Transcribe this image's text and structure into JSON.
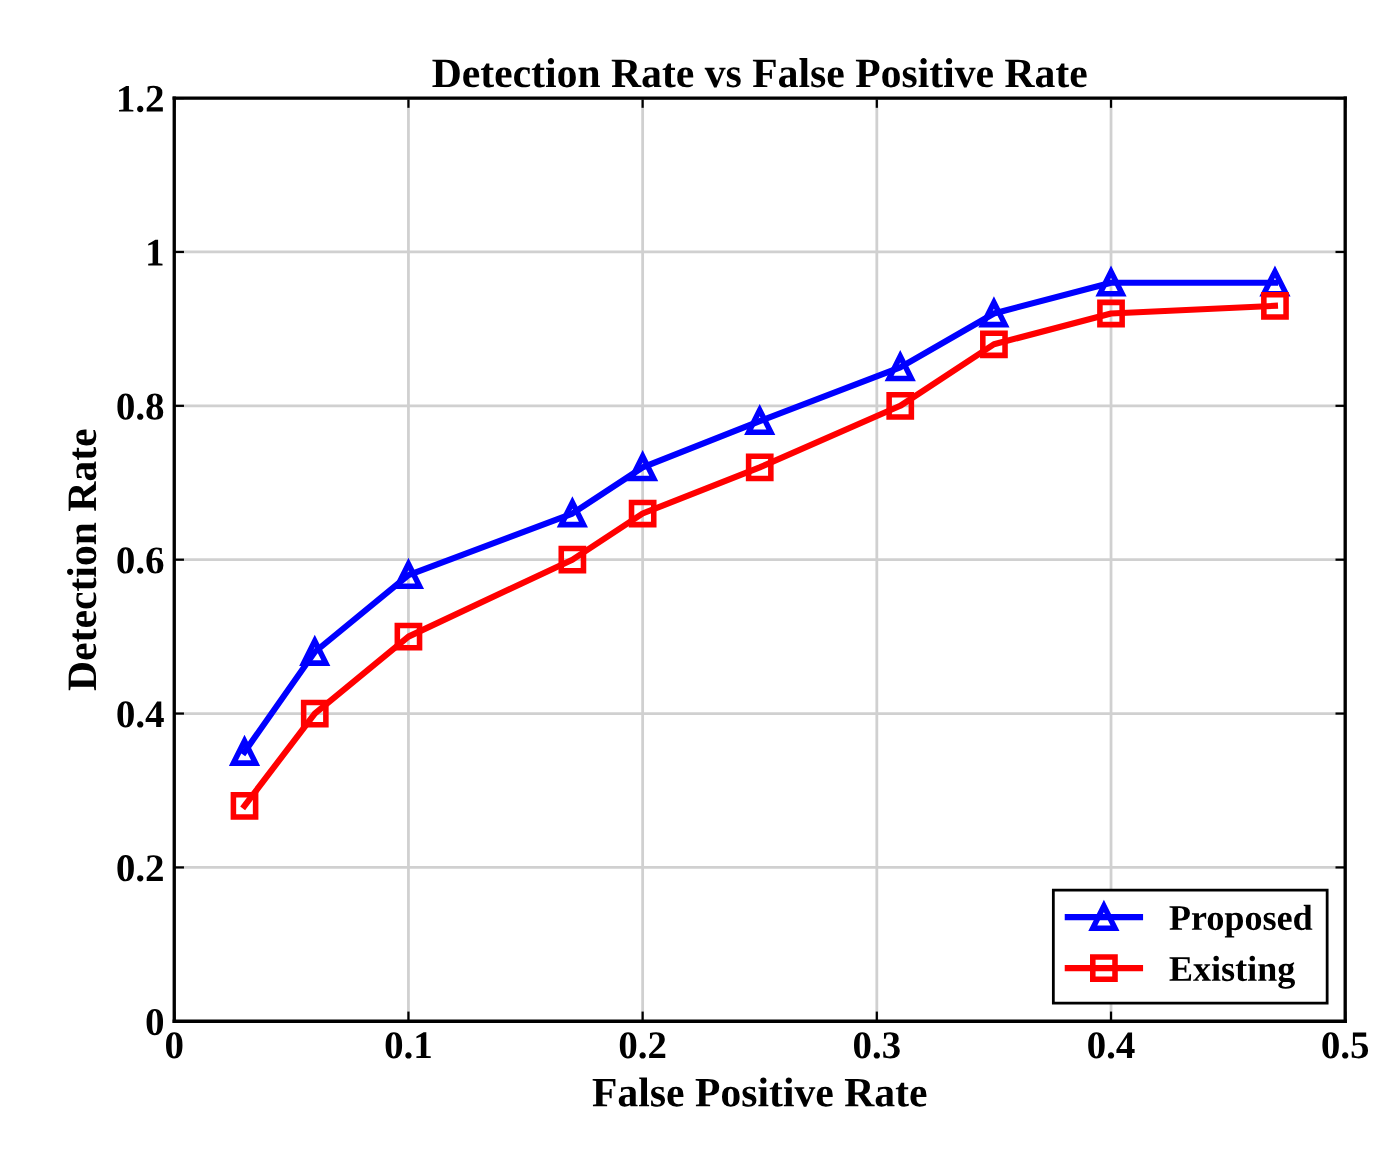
{
  "chart_data": {
    "type": "line",
    "title": "Detection Rate vs False Positive Rate",
    "xlabel": "False Positive Rate",
    "ylabel": "Detection Rate",
    "x": [
      0.03,
      0.06,
      0.1,
      0.17,
      0.2,
      0.25,
      0.31,
      0.35,
      0.4,
      0.47
    ],
    "series": [
      {
        "name": "Proposed",
        "color": "#0000ff",
        "marker": "triangle",
        "values": [
          0.35,
          0.48,
          0.58,
          0.66,
          0.72,
          0.78,
          0.85,
          0.92,
          0.96,
          0.96
        ]
      },
      {
        "name": "Existing",
        "color": "#ff0000",
        "marker": "square",
        "values": [
          0.28,
          0.4,
          0.5,
          0.6,
          0.66,
          0.72,
          0.8,
          0.88,
          0.92,
          0.93
        ]
      }
    ],
    "xlim": [
      0,
      0.5
    ],
    "xticks": [
      0,
      0.1,
      0.2,
      0.3,
      0.4,
      0.5
    ],
    "ylim": [
      0,
      1.2
    ],
    "yticks": [
      0,
      0.2,
      0.4,
      0.6,
      0.8,
      1,
      1.2
    ],
    "grid": true,
    "legend": "bottom right",
    "line_style": "solid"
  }
}
